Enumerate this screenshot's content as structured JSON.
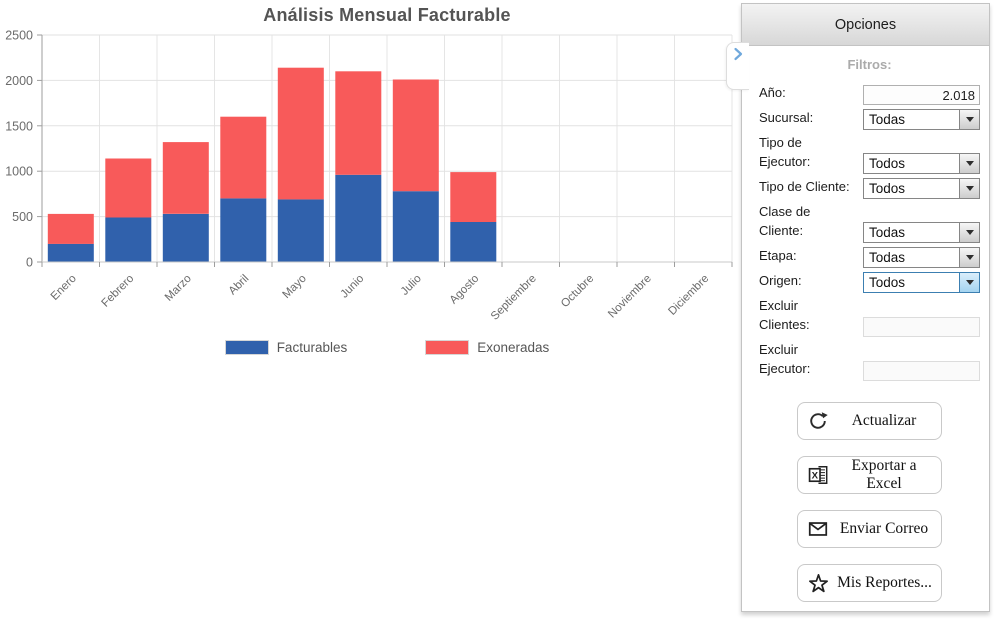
{
  "chart_data": {
    "type": "bar",
    "stacked": true,
    "title": "Análisis Mensual Facturable",
    "categories": [
      "Enero",
      "Febrero",
      "Marzo",
      "Abril",
      "Mayo",
      "Junio",
      "Julio",
      "Agosto",
      "Septiembre",
      "Octubre",
      "Noviembre",
      "Diciembre"
    ],
    "series": [
      {
        "name": "Facturables",
        "color": "#3061ac",
        "values": [
          200,
          490,
          530,
          700,
          690,
          960,
          780,
          440,
          0,
          0,
          0,
          0
        ]
      },
      {
        "name": "Exoneradas",
        "color": "#f85a5a",
        "values": [
          330,
          650,
          790,
          900,
          1450,
          1140,
          1230,
          550,
          0,
          0,
          0,
          0
        ]
      }
    ],
    "xlabel": "",
    "ylabel": "",
    "ylim": [
      0,
      2500
    ],
    "yticks": [
      0,
      500,
      1000,
      1500,
      2000,
      2500
    ],
    "grid": true,
    "legend_position": "bottom"
  },
  "collapse_toggle": {
    "icon": "chevron-right-icon",
    "color": "#6fa8dc"
  },
  "panel": {
    "header": "Opciones",
    "filters_title": "Filtros:",
    "fields": [
      {
        "name": "ano",
        "label": "Año:",
        "control": "input",
        "value": "2.018"
      },
      {
        "name": "sucursal",
        "label": "Sucursal:",
        "control": "select",
        "value": "Todas"
      },
      {
        "name": "tipo-ejecutor",
        "label": "Tipo de\nEjecutor:",
        "control": "select",
        "value": "Todos"
      },
      {
        "name": "tipo-cliente",
        "label": "Tipo de Cliente:",
        "control": "select",
        "value": "Todos"
      },
      {
        "name": "clase-cliente",
        "label": "Clase de\nCliente:",
        "control": "select",
        "value": "Todas"
      },
      {
        "name": "etapa",
        "label": "Etapa:",
        "control": "select",
        "value": "Todas"
      },
      {
        "name": "origen",
        "label": "Origen:",
        "control": "select",
        "value": "Todos",
        "focused": true
      },
      {
        "name": "excluir-clientes",
        "label": "Excluir\nClientes:",
        "control": "input_muted",
        "value": ""
      },
      {
        "name": "excluir-ejecutor",
        "label": "Excluir\nEjecutor:",
        "control": "input_muted",
        "value": ""
      }
    ],
    "buttons": [
      {
        "name": "actualizar",
        "label": "Actualizar",
        "icon": "refresh-icon"
      },
      {
        "name": "exportar-excel",
        "label": "Exportar a Excel",
        "icon": "excel-icon"
      },
      {
        "name": "enviar-correo",
        "label": "Enviar Correo",
        "icon": "mail-icon"
      },
      {
        "name": "mis-reportes",
        "label": "Mis Reportes...",
        "icon": "star-icon"
      }
    ]
  }
}
